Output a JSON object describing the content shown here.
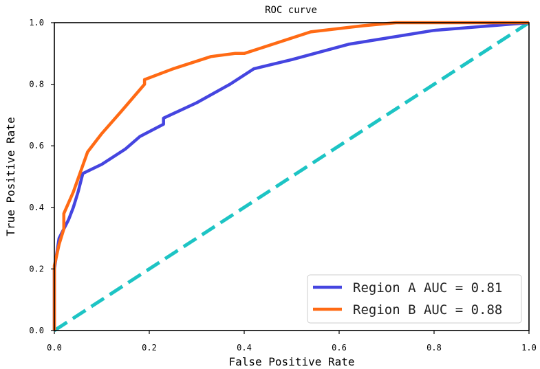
{
  "chart_data": {
    "type": "line",
    "title": "ROC curve",
    "xlabel": "False Positive Rate",
    "ylabel": "True Positive Rate",
    "xlim": [
      0.0,
      1.0
    ],
    "ylim": [
      0.0,
      1.0
    ],
    "x_ticks": [
      "0.0",
      "0.2",
      "0.4",
      "0.6",
      "0.8",
      "1.0"
    ],
    "y_ticks": [
      "0.0",
      "0.2",
      "0.4",
      "0.6",
      "0.8",
      "1.0"
    ],
    "grid": false,
    "legend_position": "lower-right",
    "series": [
      {
        "name": "Region A AUC = 0.81",
        "color": "#4545e0",
        "x": [
          0.0,
          0.0,
          0.01,
          0.02,
          0.03,
          0.04,
          0.05,
          0.06,
          0.1,
          0.15,
          0.18,
          0.23,
          0.23,
          0.3,
          0.37,
          0.42,
          0.5,
          0.62,
          0.8,
          1.0
        ],
        "y": [
          0.0,
          0.2,
          0.3,
          0.33,
          0.36,
          0.4,
          0.45,
          0.51,
          0.54,
          0.59,
          0.63,
          0.67,
          0.69,
          0.74,
          0.8,
          0.85,
          0.88,
          0.93,
          0.975,
          1.0
        ]
      },
      {
        "name": "Region B AUC = 0.88",
        "color": "#ff6a14",
        "x": [
          0.0,
          0.0,
          0.01,
          0.02,
          0.02,
          0.04,
          0.07,
          0.1,
          0.14,
          0.19,
          0.19,
          0.25,
          0.33,
          0.38,
          0.4,
          0.46,
          0.54,
          0.65,
          0.72,
          1.0
        ],
        "y": [
          0.0,
          0.21,
          0.28,
          0.33,
          0.38,
          0.45,
          0.58,
          0.64,
          0.71,
          0.8,
          0.815,
          0.85,
          0.89,
          0.9,
          0.9,
          0.93,
          0.97,
          0.99,
          1.0,
          1.0
        ]
      },
      {
        "name": "",
        "color": "#1dc4c4",
        "dashed": true,
        "x": [
          0.0,
          1.0
        ],
        "y": [
          0.0,
          1.0
        ]
      }
    ]
  }
}
